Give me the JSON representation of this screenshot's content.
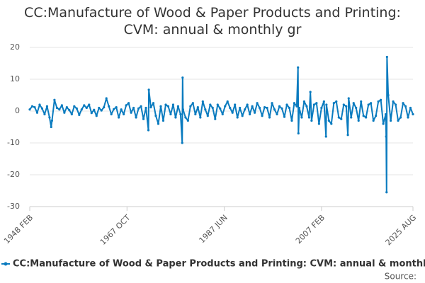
{
  "chart_data": {
    "type": "line",
    "title": "CC:Manufacture of Wood & Paper Products and Printing: CVM: annual & monthly gr",
    "source": "Source:",
    "color": "#0a7bbf",
    "grid": true,
    "ylim": [
      -30,
      20
    ],
    "yticks": [
      -30,
      -20,
      -10,
      0,
      10,
      20
    ],
    "xticks": [
      "1948 FEB",
      "1967 OCT",
      "1987 JUN",
      "2007 FEB",
      "2025 AUG"
    ],
    "x": [
      "1948 FEB",
      "1948 AUG",
      "1949 FEB",
      "1949 AUG",
      "1950 FEB",
      "1950 AUG",
      "1951 FEB",
      "1951 AUG",
      "1952 FEB",
      "1952 JUN",
      "1952 AUG",
      "1953 FEB",
      "1953 AUG",
      "1954 FEB",
      "1954 AUG",
      "1955 FEB",
      "1955 AUG",
      "1956 FEB",
      "1956 AUG",
      "1957 FEB",
      "1957 AUG",
      "1958 FEB",
      "1958 AUG",
      "1959 FEB",
      "1959 AUG",
      "1960 FEB",
      "1960 AUG",
      "1961 FEB",
      "1961 AUG",
      "1962 FEB",
      "1962 AUG",
      "1963 FEB",
      "1963 AUG",
      "1964 FEB",
      "1964 AUG",
      "1965 FEB",
      "1965 AUG",
      "1966 FEB",
      "1966 AUG",
      "1967 FEB",
      "1967 AUG",
      "1968 FEB",
      "1968 AUG",
      "1969 FEB",
      "1969 AUG",
      "1970 FEB",
      "1970 AUG",
      "1971 FEB",
      "1971 AUG",
      "1972 FEB",
      "1972 MAR",
      "1972 AUG",
      "1973 FEB",
      "1973 AUG",
      "1974 FEB",
      "1974 AUG",
      "1975 FEB",
      "1975 AUG",
      "1976 FEB",
      "1976 AUG",
      "1977 FEB",
      "1977 AUG",
      "1978 FEB",
      "1978 AUG",
      "1978 DEC",
      "1979 JAN",
      "1979 FEB",
      "1979 AUG",
      "1980 FEB",
      "1980 AUG",
      "1981 FEB",
      "1981 AUG",
      "1982 FEB",
      "1982 AUG",
      "1983 FEB",
      "1983 AUG",
      "1984 FEB",
      "1984 AUG",
      "1985 FEB",
      "1985 AUG",
      "1986 FEB",
      "1986 AUG",
      "1987 FEB",
      "1987 AUG",
      "1988 FEB",
      "1988 AUG",
      "1989 FEB",
      "1989 AUG",
      "1990 FEB",
      "1990 AUG",
      "1991 FEB",
      "1991 AUG",
      "1992 FEB",
      "1992 AUG",
      "1993 FEB",
      "1993 AUG",
      "1994 FEB",
      "1994 AUG",
      "1995 FEB",
      "1995 AUG",
      "1996 FEB",
      "1996 AUG",
      "1997 FEB",
      "1997 AUG",
      "1998 FEB",
      "1998 AUG",
      "1999 FEB",
      "1999 AUG",
      "2000 FEB",
      "2000 AUG",
      "2001 FEB",
      "2001 AUG",
      "2002 FEB",
      "2002 MAY",
      "2002 JUN",
      "2002 AUG",
      "2003 FEB",
      "2003 AUG",
      "2004 FEB",
      "2004 AUG",
      "2004 NOV",
      "2005 FEB",
      "2005 AUG",
      "2006 FEB",
      "2006 AUG",
      "2007 FEB",
      "2007 AUG",
      "2008 JAN",
      "2008 FEB",
      "2008 AUG",
      "2009 FEB",
      "2009 AUG",
      "2010 FEB",
      "2010 AUG",
      "2011 FEB",
      "2011 AUG",
      "2012 FEB",
      "2012 JUN",
      "2012 AUG",
      "2013 FEB",
      "2013 AUG",
      "2014 FEB",
      "2014 AUG",
      "2015 FEB",
      "2015 AUG",
      "2016 FEB",
      "2016 AUG",
      "2017 FEB",
      "2017 AUG",
      "2018 FEB",
      "2018 AUG",
      "2019 FEB",
      "2019 AUG",
      "2020 FEB",
      "2020 MAR",
      "2020 APR",
      "2020 MAY",
      "2020 AUG",
      "2021 FEB",
      "2021 AUG",
      "2022 FEB",
      "2022 AUG",
      "2023 FEB",
      "2023 AUG",
      "2024 FEB",
      "2024 AUG",
      "2025 FEB",
      "2025 AUG"
    ],
    "series": [
      {
        "name": "CC:Manufacture of Wood & Paper Products and Printing: CVM: annual & monthly gr",
        "values": [
          0.5,
          1.5,
          1.2,
          -0.5,
          2,
          0.8,
          -1,
          1.5,
          -2,
          -5,
          -3,
          3.5,
          1,
          0.5,
          1.8,
          -0.5,
          1.2,
          0.3,
          -1,
          1.5,
          0.8,
          -1.2,
          0.5,
          1.8,
          1,
          2,
          -0.6,
          0.4,
          -1.5,
          1,
          0.2,
          1.2,
          4,
          1.5,
          -1,
          0.6,
          1.2,
          -2,
          0.5,
          -1,
          1.8,
          2.5,
          -0.5,
          1,
          -2,
          0.8,
          1.5,
          -2.5,
          1,
          -6,
          6.7,
          1.2,
          2.5,
          -1.5,
          -4,
          1.5,
          -3,
          2,
          1.5,
          -1,
          2,
          -2,
          1.5,
          -1,
          -10,
          10.5,
          0.5,
          -2,
          -3,
          1.5,
          2.5,
          -1,
          1.2,
          -2,
          3,
          0.5,
          -1.5,
          2,
          1,
          -2.5,
          2,
          0.8,
          -1,
          1.5,
          3,
          1,
          -0.5,
          2,
          -2,
          1,
          -1.5,
          0.5,
          2,
          -1,
          1.5,
          -0.5,
          2.5,
          1,
          -1.5,
          1.2,
          1,
          -2,
          2.5,
          0.5,
          -1,
          1.5,
          0.8,
          -1.8,
          2,
          1,
          -3,
          2.5,
          1.5,
          13.7,
          -7,
          1,
          -2,
          3,
          1.5,
          -2,
          6,
          -3,
          2,
          2.5,
          -4,
          1,
          3,
          -8,
          2,
          -3,
          -4,
          2.5,
          3,
          -2,
          -2.5,
          2,
          1.5,
          -7.5,
          4,
          -2,
          2.5,
          1,
          -3,
          3,
          -1.5,
          -2,
          2,
          2.5,
          -3,
          -1.5,
          3,
          3.5,
          -4,
          -1,
          -8,
          -25.5,
          17,
          5,
          -3,
          3,
          2,
          -3,
          -2,
          2.5,
          1.5,
          -2,
          1,
          -1
        ]
      }
    ]
  }
}
